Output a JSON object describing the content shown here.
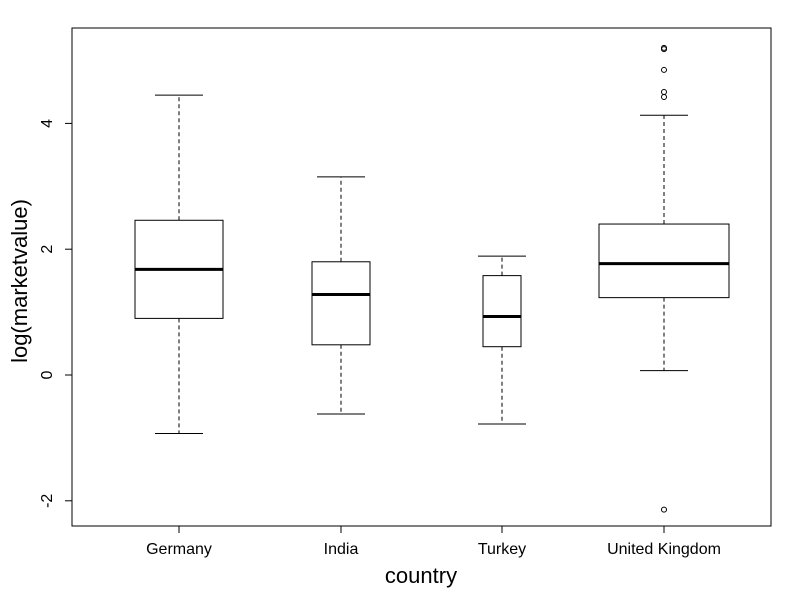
{
  "chart_data": {
    "type": "boxplot",
    "title": "",
    "xlabel": "country",
    "ylabel": "log(marketvalue)",
    "ylim": [
      -2.4,
      5.5
    ],
    "yticks": [
      -2,
      0,
      2,
      4
    ],
    "ytick_labels": [
      "-2",
      "0",
      "2",
      "4"
    ],
    "grid": false,
    "categories": [
      "Germany",
      "India",
      "Turkey",
      "United Kingdom"
    ],
    "boxes": [
      {
        "category": "Germany",
        "whisker_low": -0.93,
        "q1": 0.9,
        "median": 1.68,
        "q3": 2.46,
        "whisker_high": 4.45,
        "outliers": []
      },
      {
        "category": "India",
        "whisker_low": -0.62,
        "q1": 0.48,
        "median": 1.28,
        "q3": 1.8,
        "whisker_high": 3.15,
        "outliers": []
      },
      {
        "category": "Turkey",
        "whisker_low": -0.78,
        "q1": 0.45,
        "median": 0.93,
        "q3": 1.58,
        "whisker_high": 1.89,
        "outliers": []
      },
      {
        "category": "United Kingdom",
        "whisker_low": 0.07,
        "q1": 1.23,
        "median": 1.77,
        "q3": 2.4,
        "whisker_high": 4.13,
        "outliers": [
          -2.14,
          4.42,
          4.5,
          4.85,
          5.18,
          5.2
        ]
      }
    ]
  }
}
